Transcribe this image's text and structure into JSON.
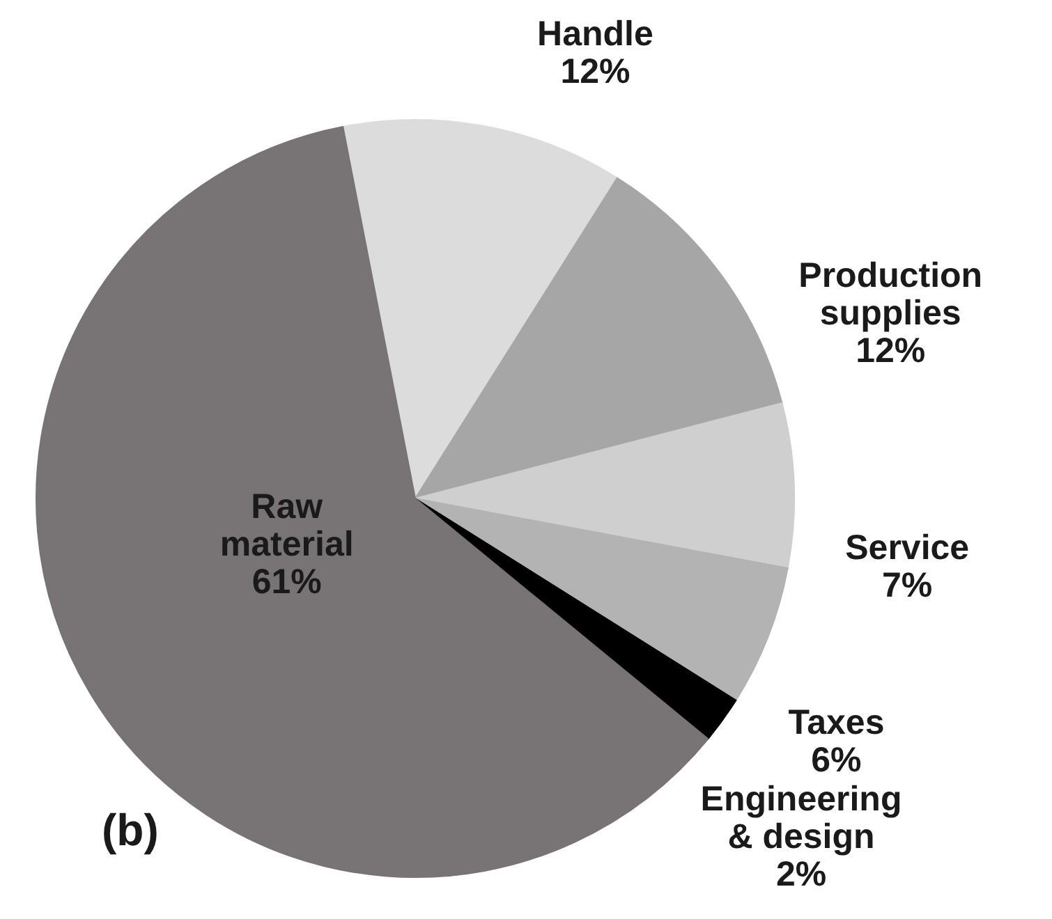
{
  "chart_data": {
    "type": "pie",
    "categories": [
      "Handle",
      "Production supplies",
      "Service",
      "Taxes",
      "Engineering & design",
      "Raw material"
    ],
    "values": [
      12,
      12,
      7,
      6,
      2,
      61
    ],
    "value_labels": [
      "12%",
      "12%",
      "7%",
      "6%",
      "2%",
      "61%"
    ],
    "colors": [
      "#dcdcdc",
      "#a6a6a6",
      "#cfcfcf",
      "#b3b3b3",
      "#000000",
      "#787374"
    ],
    "legend": false,
    "annotations": [
      "(b)"
    ]
  }
}
